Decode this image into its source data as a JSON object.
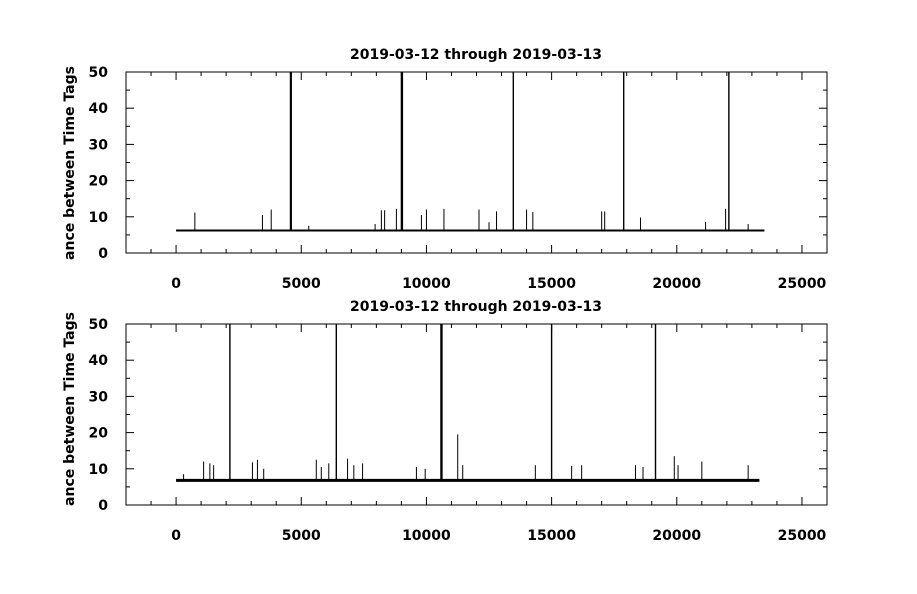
{
  "chart_data": [
    {
      "type": "line",
      "title": "2019-03-12 through 2019-03-13",
      "xlabel": "",
      "ylabel": "ance between Time Tags",
      "xlim": [
        -2000,
        26000
      ],
      "ylim": [
        0,
        50
      ],
      "xticks": [
        0,
        5000,
        10000,
        15000,
        20000,
        25000
      ],
      "yticks": [
        0,
        10,
        20,
        30,
        40,
        50
      ],
      "x_range": [
        0,
        23500
      ],
      "baseline": 6.2,
      "spikes": [
        {
          "x": 750,
          "y": 11.2
        },
        {
          "x": 3450,
          "y": 10.5
        },
        {
          "x": 3800,
          "y": 12.0
        },
        {
          "x": 4570,
          "y": 50
        },
        {
          "x": 4600,
          "y": 50
        },
        {
          "x": 5300,
          "y": 7.5
        },
        {
          "x": 7950,
          "y": 8.0
        },
        {
          "x": 8200,
          "y": 11.8
        },
        {
          "x": 8330,
          "y": 11.8
        },
        {
          "x": 8800,
          "y": 12.2
        },
        {
          "x": 9000,
          "y": 50
        },
        {
          "x": 9040,
          "y": 50
        },
        {
          "x": 9800,
          "y": 10.5
        },
        {
          "x": 10000,
          "y": 12.0
        },
        {
          "x": 10700,
          "y": 12.2
        },
        {
          "x": 12100,
          "y": 12.0
        },
        {
          "x": 12500,
          "y": 8.5
        },
        {
          "x": 12800,
          "y": 11.5
        },
        {
          "x": 13470,
          "y": 50
        },
        {
          "x": 14000,
          "y": 12.0
        },
        {
          "x": 14250,
          "y": 11.3
        },
        {
          "x": 17000,
          "y": 11.5
        },
        {
          "x": 17120,
          "y": 11.5
        },
        {
          "x": 17880,
          "y": 50
        },
        {
          "x": 18550,
          "y": 9.8
        },
        {
          "x": 21150,
          "y": 8.6
        },
        {
          "x": 21950,
          "y": 12.2
        },
        {
          "x": 22080,
          "y": 50
        },
        {
          "x": 22850,
          "y": 8.0
        }
      ]
    },
    {
      "type": "line",
      "title": "2019-03-12 through 2019-03-13",
      "xlabel": "",
      "ylabel": "ance between Time Tags",
      "xlim": [
        -2000,
        26000
      ],
      "ylim": [
        0,
        50
      ],
      "xticks": [
        0,
        5000,
        10000,
        15000,
        20000,
        25000
      ],
      "yticks": [
        0,
        10,
        20,
        30,
        40,
        50
      ],
      "x_range": [
        0,
        23300
      ],
      "baseline": 6.8,
      "spikes": [
        {
          "x": 300,
          "y": 8.5
        },
        {
          "x": 1100,
          "y": 12.0
        },
        {
          "x": 1350,
          "y": 11.5
        },
        {
          "x": 1500,
          "y": 11.0
        },
        {
          "x": 2150,
          "y": 50
        },
        {
          "x": 3050,
          "y": 11.8
        },
        {
          "x": 3250,
          "y": 12.5
        },
        {
          "x": 3500,
          "y": 10.0
        },
        {
          "x": 5600,
          "y": 12.5
        },
        {
          "x": 5800,
          "y": 10.5
        },
        {
          "x": 6100,
          "y": 11.5
        },
        {
          "x": 6400,
          "y": 50
        },
        {
          "x": 6850,
          "y": 12.8
        },
        {
          "x": 7100,
          "y": 11.0
        },
        {
          "x": 7450,
          "y": 11.5
        },
        {
          "x": 9600,
          "y": 10.5
        },
        {
          "x": 9950,
          "y": 10.0
        },
        {
          "x": 10580,
          "y": 50
        },
        {
          "x": 10620,
          "y": 50
        },
        {
          "x": 11250,
          "y": 19.5
        },
        {
          "x": 11450,
          "y": 11.0
        },
        {
          "x": 14350,
          "y": 11.0
        },
        {
          "x": 15000,
          "y": 50
        },
        {
          "x": 15800,
          "y": 10.8
        },
        {
          "x": 16200,
          "y": 11.0
        },
        {
          "x": 18350,
          "y": 11.0
        },
        {
          "x": 18650,
          "y": 10.5
        },
        {
          "x": 19150,
          "y": 50
        },
        {
          "x": 19900,
          "y": 13.5
        },
        {
          "x": 20050,
          "y": 11.0
        },
        {
          "x": 21000,
          "y": 12.0
        },
        {
          "x": 22850,
          "y": 11.0
        }
      ]
    }
  ]
}
